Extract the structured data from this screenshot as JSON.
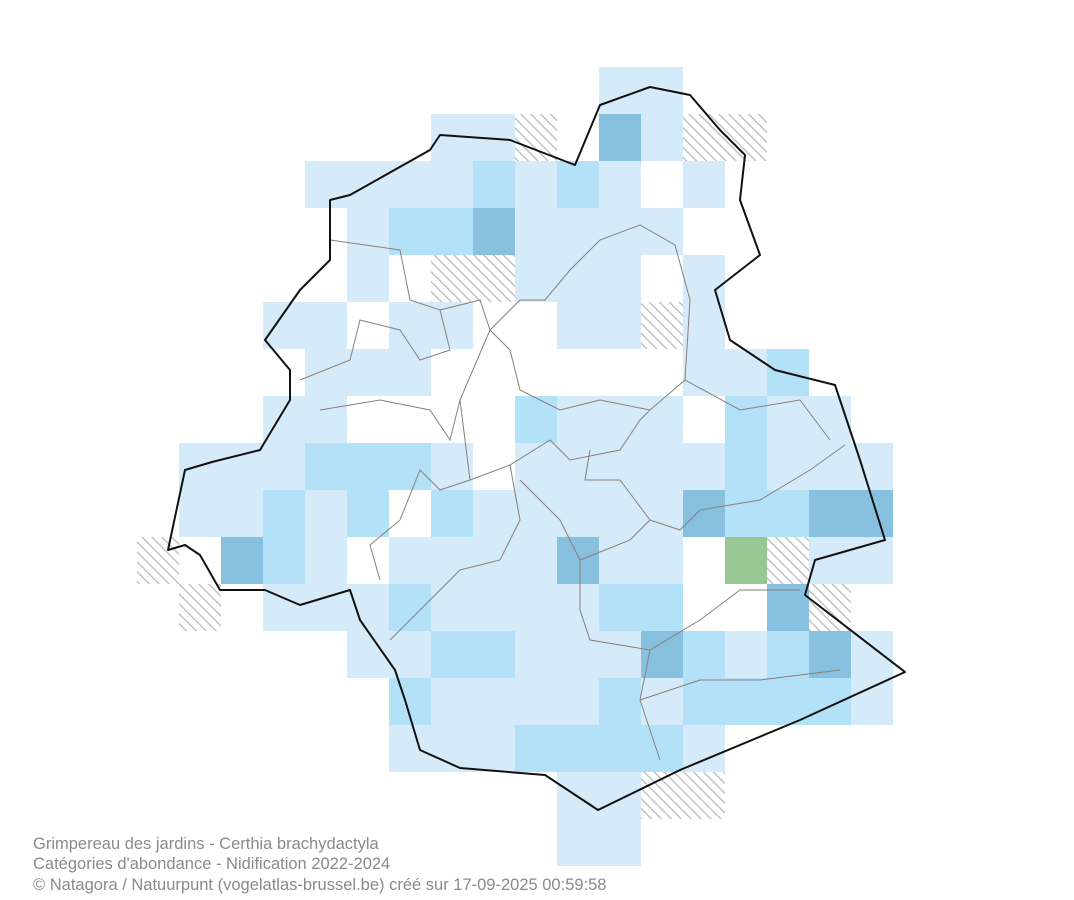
{
  "caption": {
    "line1": "Grimpereau des jardins - Certhia brachydactyla",
    "line2": "Catégories d'abondance - Nidification 2022-2024",
    "line3": "© Natagora / Natuurpunt (vogelatlas-brussel.be) créé sur 17-09-2025 00:59:58"
  }
}
